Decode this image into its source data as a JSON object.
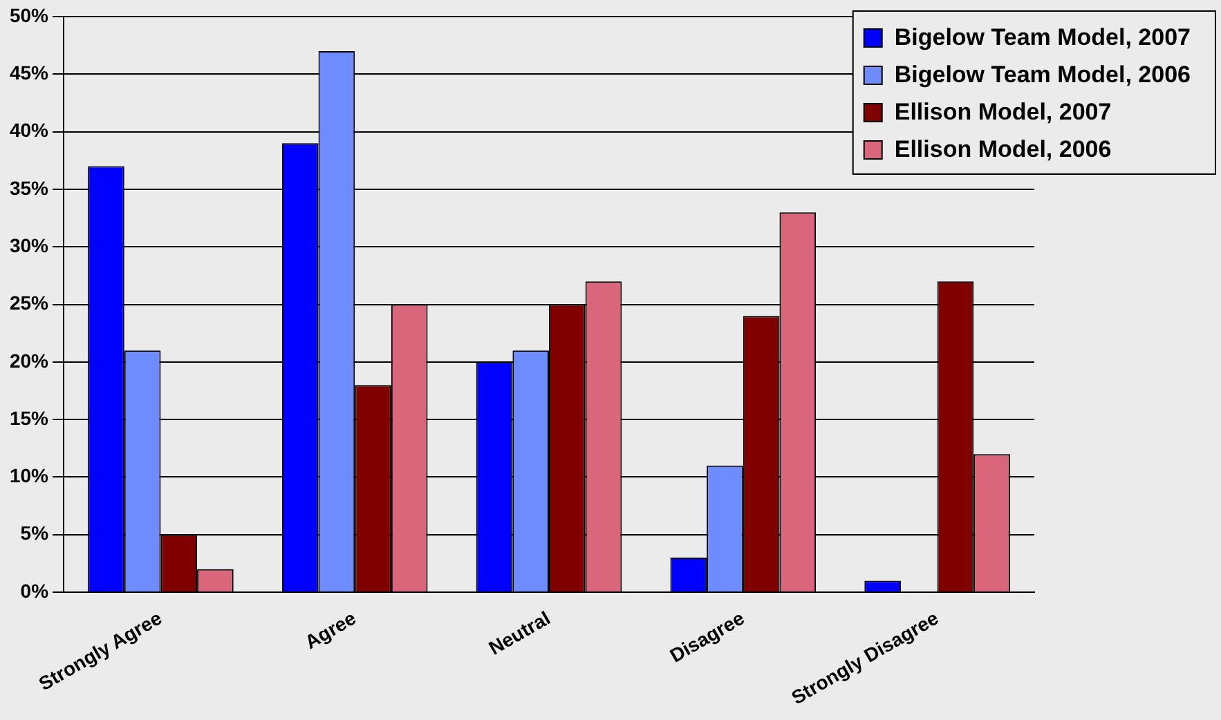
{
  "chart_data": {
    "type": "bar",
    "categories": [
      "Strongly Agree",
      "Agree",
      "Neutral",
      "Disagree",
      "Strongly Disagree"
    ],
    "series": [
      {
        "name": "Bigelow Team Model, 2007",
        "color": "#0000ff",
        "values": [
          37,
          39,
          20,
          3,
          1
        ]
      },
      {
        "name": "Bigelow Team Model, 2006",
        "color": "#6f8cff",
        "values": [
          21,
          47,
          21,
          11,
          0
        ]
      },
      {
        "name": "Ellison Model, 2007",
        "color": "#800000",
        "values": [
          5,
          18,
          25,
          24,
          27
        ]
      },
      {
        "name": "Ellison Model, 2006",
        "color": "#d9667a",
        "values": [
          2,
          25,
          27,
          33,
          12
        ]
      }
    ],
    "ylim": [
      0,
      50
    ],
    "yticks": [
      {
        "value": 0,
        "label": "0%"
      },
      {
        "value": 5,
        "label": "5%"
      },
      {
        "value": 10,
        "label": "10%"
      },
      {
        "value": 15,
        "label": "15%"
      },
      {
        "value": 20,
        "label": "20%"
      },
      {
        "value": 25,
        "label": "25%"
      },
      {
        "value": 30,
        "label": "30%"
      },
      {
        "value": 35,
        "label": "35%"
      },
      {
        "value": 40,
        "label": "40%"
      },
      {
        "value": 45,
        "label": "45%"
      },
      {
        "value": 50,
        "label": "50%"
      }
    ],
    "grid": "y",
    "legend": "top right"
  }
}
